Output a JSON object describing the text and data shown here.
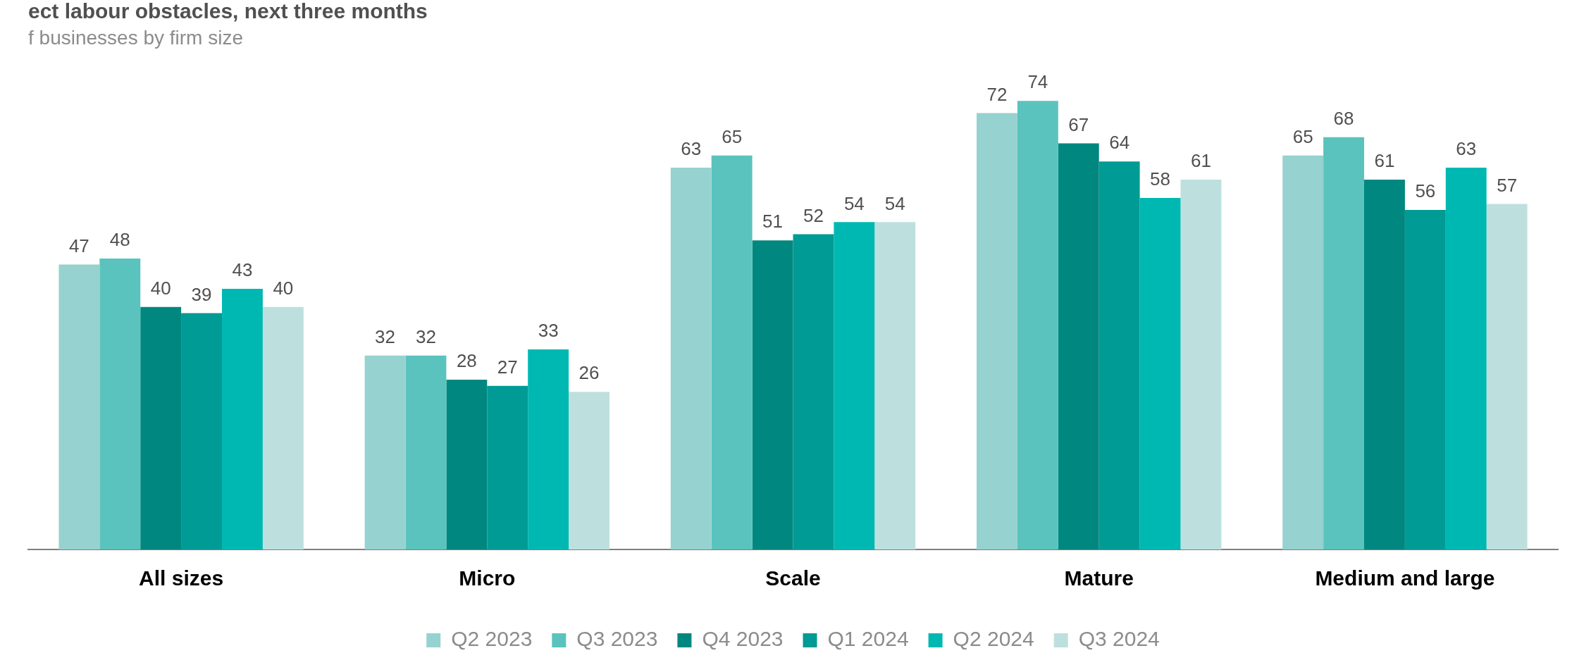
{
  "chart_data": {
    "type": "bar",
    "title": "ect labour obstacles, next three months",
    "subtitle": "f businesses by firm size",
    "categories": [
      "All sizes",
      "Micro",
      "Scale",
      "Mature",
      "Medium and large"
    ],
    "series": [
      {
        "name": "Q2 2023",
        "color": "#96d2cf",
        "values": [
          47,
          32,
          63,
          72,
          65
        ]
      },
      {
        "name": "Q3 2023",
        "color": "#5ac3bd",
        "values": [
          48,
          32,
          65,
          74,
          68
        ]
      },
      {
        "name": "Q4 2023",
        "color": "#00877f",
        "values": [
          40,
          28,
          51,
          67,
          61
        ]
      },
      {
        "name": "Q1 2024",
        "color": "#009b94",
        "values": [
          39,
          27,
          52,
          64,
          56
        ]
      },
      {
        "name": "Q2 2024",
        "color": "#00b8b2",
        "values": [
          43,
          33,
          54,
          58,
          63
        ]
      },
      {
        "name": "Q3 2024",
        "color": "#bde0de",
        "values": [
          40,
          26,
          54,
          61,
          57
        ]
      }
    ],
    "data_labels": true,
    "legend": "bottom",
    "grid": false
  }
}
